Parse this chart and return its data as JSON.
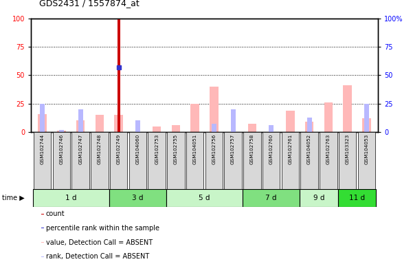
{
  "title": "GDS2431 / 1557874_at",
  "samples": [
    "GSM102744",
    "GSM102746",
    "GSM102747",
    "GSM102748",
    "GSM102749",
    "GSM104060",
    "GSM102753",
    "GSM102755",
    "GSM104051",
    "GSM102756",
    "GSM102757",
    "GSM102758",
    "GSM102760",
    "GSM102761",
    "GSM104052",
    "GSM102763",
    "GSM103323",
    "GSM104053"
  ],
  "time_groups": [
    {
      "label": "1 d",
      "start": 0,
      "end": 4,
      "color": "#c8f5c8"
    },
    {
      "label": "3 d",
      "start": 4,
      "end": 7,
      "color": "#80e080"
    },
    {
      "label": "5 d",
      "start": 7,
      "end": 11,
      "color": "#c8f5c8"
    },
    {
      "label": "7 d",
      "start": 11,
      "end": 14,
      "color": "#80e080"
    },
    {
      "label": "9 d",
      "start": 14,
      "end": 16,
      "color": "#c8f5c8"
    },
    {
      "label": "11 d",
      "start": 16,
      "end": 18,
      "color": "#33dd33"
    }
  ],
  "count_values": [
    0,
    0,
    0,
    0,
    100,
    0,
    0,
    0,
    0,
    0,
    0,
    0,
    0,
    0,
    0,
    0,
    0,
    0
  ],
  "percentile_rank_values": [
    0,
    0,
    0,
    0,
    57,
    0,
    0,
    0,
    0,
    0,
    0,
    0,
    0,
    0,
    0,
    0,
    0,
    0
  ],
  "value_absent": [
    16,
    1,
    10,
    15,
    15,
    0,
    5,
    6,
    25,
    40,
    0,
    7,
    0,
    19,
    9,
    26,
    41,
    12
  ],
  "rank_absent": [
    25,
    2,
    20,
    0,
    0,
    10,
    0,
    0,
    0,
    7,
    20,
    0,
    6,
    0,
    13,
    0,
    0,
    25
  ],
  "bg_color": "#ffffff",
  "plot_area_bg": "#ffffff",
  "count_color": "#cc0000",
  "percentile_color": "#3333cc",
  "value_absent_color": "#ffb8b8",
  "rank_absent_color": "#b8b8ff",
  "sample_box_color": "#d8d8d8",
  "yticks": [
    0,
    25,
    50,
    75,
    100
  ],
  "ylim": [
    0,
    100
  ]
}
